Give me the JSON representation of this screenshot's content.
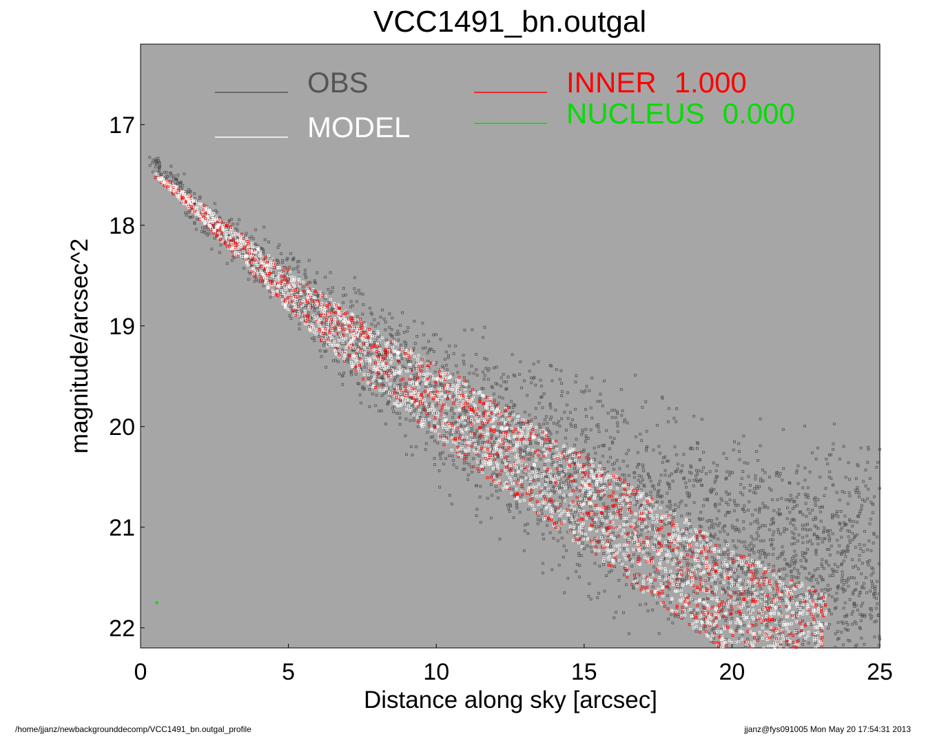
{
  "chart_data": {
    "type": "scatter",
    "title": "VCC1491_bn.outgal",
    "xlabel": "Distance along sky [arcsec]",
    "ylabel": "magnitude/arcsec^2",
    "xlim": [
      0,
      25
    ],
    "ylim": [
      22.2,
      16.2
    ],
    "y_inverted": true,
    "x_ticks": [
      "0",
      "5",
      "10",
      "15",
      "20",
      "25"
    ],
    "y_ticks": [
      "17",
      "18",
      "19",
      "20",
      "21",
      "22"
    ],
    "background_color": "#a6a6a6",
    "grid": false,
    "legend_placement": "top",
    "legend": [
      {
        "name": "OBS",
        "color": "#555555"
      },
      {
        "name": "MODEL",
        "color": "#ffffff"
      },
      {
        "name": "INNER",
        "value": "1.000",
        "color": "#ff0000"
      },
      {
        "name": "NUCLEUS",
        "value": "0.000",
        "color": "#00dd00"
      }
    ],
    "series": [
      {
        "name": "OBS",
        "color": "#555555",
        "trend": {
          "x": [
            0.2,
            2,
            5,
            8,
            11,
            14,
            17,
            20,
            25
          ],
          "y_center": [
            17.3,
            17.85,
            18.6,
            19.35,
            19.95,
            20.45,
            20.9,
            21.25,
            21.5
          ],
          "scatter_width": [
            0.05,
            0.15,
            0.25,
            0.4,
            0.55,
            0.7,
            0.8,
            0.85,
            0.9
          ]
        }
      },
      {
        "name": "MODEL",
        "color": "#ffffff",
        "trend": {
          "x": [
            0.5,
            2,
            5,
            8,
            11,
            14,
            17,
            20,
            23
          ],
          "y_center": [
            17.5,
            17.85,
            18.65,
            19.35,
            19.95,
            20.55,
            21.15,
            21.75,
            22.2
          ],
          "band_width": [
            0.02,
            0.08,
            0.2,
            0.3,
            0.4,
            0.45,
            0.5,
            0.55,
            0.55
          ]
        }
      },
      {
        "name": "INNER",
        "color": "#ff0000",
        "trend": {
          "x": [
            0.5,
            2,
            5,
            8,
            11,
            14,
            17,
            20,
            23
          ],
          "y_center": [
            17.5,
            17.85,
            18.65,
            19.35,
            19.95,
            20.55,
            21.15,
            21.75,
            22.2
          ],
          "band_width": [
            0.02,
            0.08,
            0.2,
            0.3,
            0.4,
            0.45,
            0.5,
            0.55,
            0.55
          ]
        }
      },
      {
        "name": "NUCLEUS",
        "color": "#00dd00",
        "points": [
          {
            "x": 0.55,
            "y": 21.75
          }
        ]
      }
    ]
  },
  "footer": {
    "left": "/home/jjanz/newbackgrounddecomp/VCC1491_bn.outgal_profile",
    "right": "jjanz@fys091005  Mon May 20 17:54:31 2013"
  }
}
